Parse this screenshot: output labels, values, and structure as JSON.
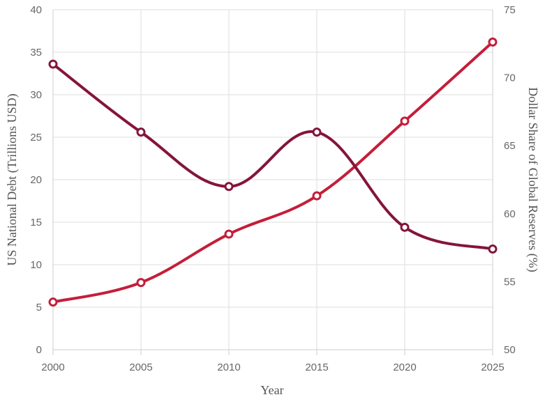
{
  "chart_data": {
    "type": "line",
    "xlabel": "Year",
    "ylabel_left": "US National Debt (Trillions USD)",
    "ylabel_right": "Dollar Share of Global Reserves (%)",
    "x": [
      2000,
      2005,
      2010,
      2015,
      2020,
      2025
    ],
    "x_ticks": [
      "2000",
      "2005",
      "2010",
      "2015",
      "2020",
      "2025"
    ],
    "ylim_left": [
      0,
      40
    ],
    "ylim_right": [
      50,
      75
    ],
    "y_ticks_left": [
      "0",
      "5",
      "10",
      "15",
      "20",
      "25",
      "30",
      "35",
      "40"
    ],
    "y_ticks_right": [
      "50",
      "55",
      "60",
      "65",
      "70",
      "75"
    ],
    "grid": true,
    "legend": "none",
    "series": [
      {
        "axis": "left",
        "color": "#c41e3a",
        "values": [
          5.6,
          7.9,
          13.6,
          18.1,
          26.9,
          36.2
        ]
      },
      {
        "axis": "right",
        "color": "#841539",
        "values": [
          71.0,
          66.0,
          62.0,
          66.0,
          59.0,
          57.4
        ]
      }
    ]
  }
}
